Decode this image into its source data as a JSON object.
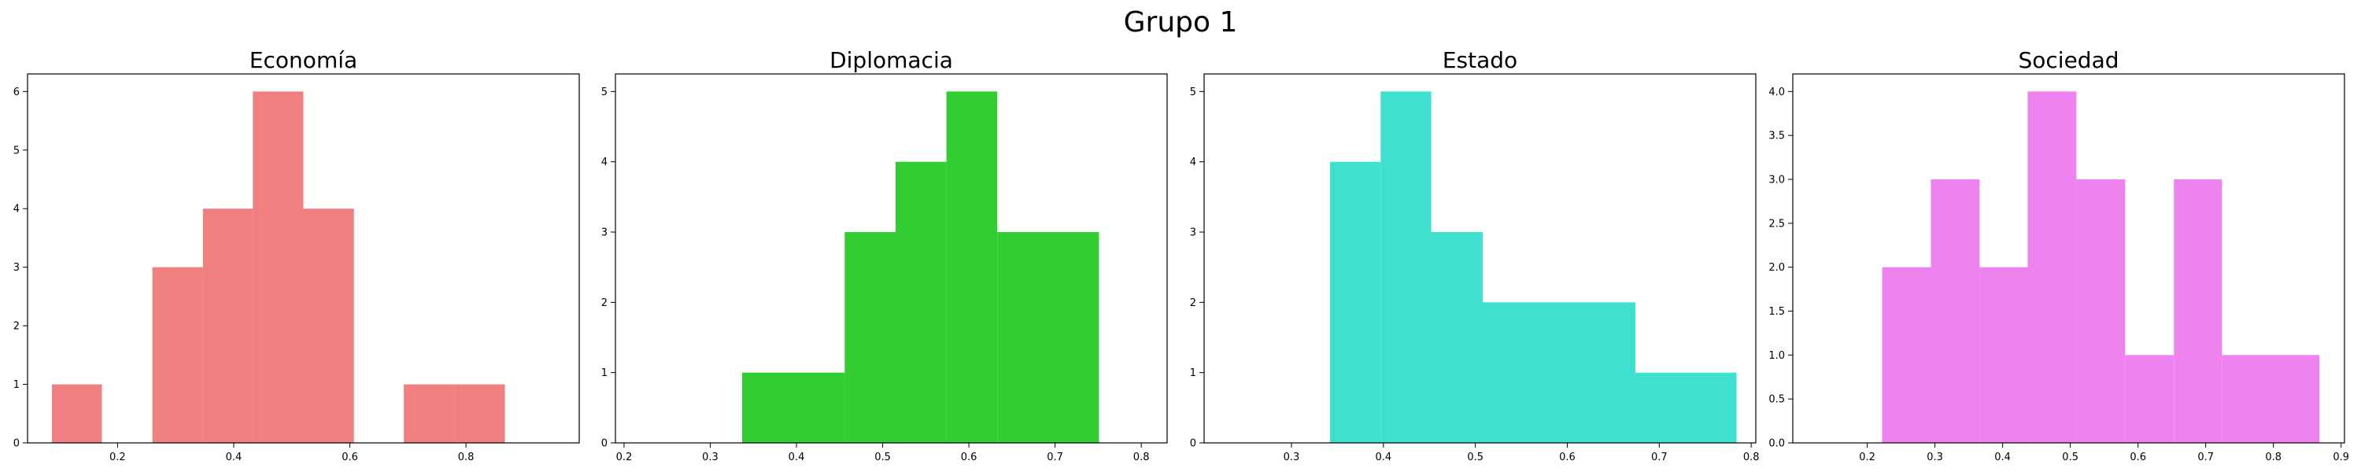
{
  "figure_title": "Grupo 1",
  "chart_data": [
    {
      "type": "bar",
      "title": "Economía",
      "color": "#F08080",
      "bins": [
        {
          "x0": 0.087,
          "x1": 0.173,
          "count": 1
        },
        {
          "x0": 0.26,
          "x1": 0.347,
          "count": 3
        },
        {
          "x0": 0.347,
          "x1": 0.433,
          "count": 4
        },
        {
          "x0": 0.433,
          "x1": 0.52,
          "count": 6
        },
        {
          "x0": 0.52,
          "x1": 0.607,
          "count": 4
        },
        {
          "x0": 0.693,
          "x1": 0.78,
          "count": 1
        },
        {
          "x0": 0.78,
          "x1": 0.867,
          "count": 1
        }
      ],
      "xlim": [
        0.045,
        0.995
      ],
      "ylim": [
        0,
        6.3
      ],
      "xticks": [
        0.2,
        0.4,
        0.6,
        0.8
      ],
      "xtick_labels": [
        "0.2",
        "0.4",
        "0.6",
        "0.8"
      ],
      "yticks": [
        0,
        1,
        2,
        3,
        4,
        5,
        6
      ],
      "ytick_labels": [
        "0",
        "1",
        "2",
        "3",
        "4",
        "5",
        "6"
      ]
    },
    {
      "type": "bar",
      "title": "Diplomacia",
      "color": "#32CD32",
      "bins": [
        {
          "x0": 0.337,
          "x1": 0.456,
          "count": 1
        },
        {
          "x0": 0.456,
          "x1": 0.515,
          "count": 3
        },
        {
          "x0": 0.515,
          "x1": 0.574,
          "count": 4
        },
        {
          "x0": 0.574,
          "x1": 0.633,
          "count": 5
        },
        {
          "x0": 0.633,
          "x1": 0.751,
          "count": 3
        }
      ],
      "xlim": [
        0.19,
        0.83
      ],
      "ylim": [
        0,
        5.25
      ],
      "xticks": [
        0.2,
        0.3,
        0.4,
        0.5,
        0.6,
        0.7,
        0.8
      ],
      "xtick_labels": [
        "0.2",
        "0.3",
        "0.4",
        "0.5",
        "0.6",
        "0.7",
        "0.8"
      ],
      "yticks": [
        0,
        1,
        2,
        3,
        4,
        5
      ],
      "ytick_labels": [
        "0",
        "1",
        "2",
        "3",
        "4",
        "5"
      ]
    },
    {
      "type": "bar",
      "title": "Estado",
      "color": "#40E0D0",
      "bins": [
        {
          "x0": 0.342,
          "x1": 0.397,
          "count": 4
        },
        {
          "x0": 0.397,
          "x1": 0.452,
          "count": 5
        },
        {
          "x0": 0.452,
          "x1": 0.508,
          "count": 3
        },
        {
          "x0": 0.508,
          "x1": 0.674,
          "count": 2
        },
        {
          "x0": 0.674,
          "x1": 0.784,
          "count": 1
        }
      ],
      "xlim": [
        0.205,
        0.805
      ],
      "ylim": [
        0,
        5.25
      ],
      "xticks": [
        0.3,
        0.4,
        0.5,
        0.6,
        0.7,
        0.8
      ],
      "xtick_labels": [
        "0.3",
        "0.4",
        "0.5",
        "0.6",
        "0.7",
        "0.8"
      ],
      "yticks": [
        0,
        1,
        2,
        3,
        4,
        5
      ],
      "ytick_labels": [
        "0",
        "1",
        "2",
        "3",
        "4",
        "5"
      ]
    },
    {
      "type": "bar",
      "title": "Sociedad",
      "color": "#EE82EE",
      "bins": [
        {
          "x0": 0.222,
          "x1": 0.294,
          "count": 2
        },
        {
          "x0": 0.294,
          "x1": 0.366,
          "count": 3
        },
        {
          "x0": 0.366,
          "x1": 0.437,
          "count": 2
        },
        {
          "x0": 0.437,
          "x1": 0.509,
          "count": 4
        },
        {
          "x0": 0.509,
          "x1": 0.581,
          "count": 3
        },
        {
          "x0": 0.581,
          "x1": 0.653,
          "count": 1
        },
        {
          "x0": 0.653,
          "x1": 0.724,
          "count": 3
        },
        {
          "x0": 0.724,
          "x1": 0.868,
          "count": 1
        }
      ],
      "xlim": [
        0.09,
        0.905
      ],
      "ylim": [
        0,
        4.2
      ],
      "xticks": [
        0.2,
        0.3,
        0.4,
        0.5,
        0.6,
        0.7,
        0.8,
        0.9
      ],
      "xtick_labels": [
        "0.2",
        "0.3",
        "0.4",
        "0.5",
        "0.6",
        "0.7",
        "0.8",
        "0.9"
      ],
      "yticks": [
        0,
        0.5,
        1,
        1.5,
        2,
        2.5,
        3,
        3.5,
        4
      ],
      "ytick_labels": [
        "0.0",
        "0.5",
        "1.0",
        "1.5",
        "2.0",
        "2.5",
        "3.0",
        "3.5",
        "4.0"
      ]
    }
  ]
}
